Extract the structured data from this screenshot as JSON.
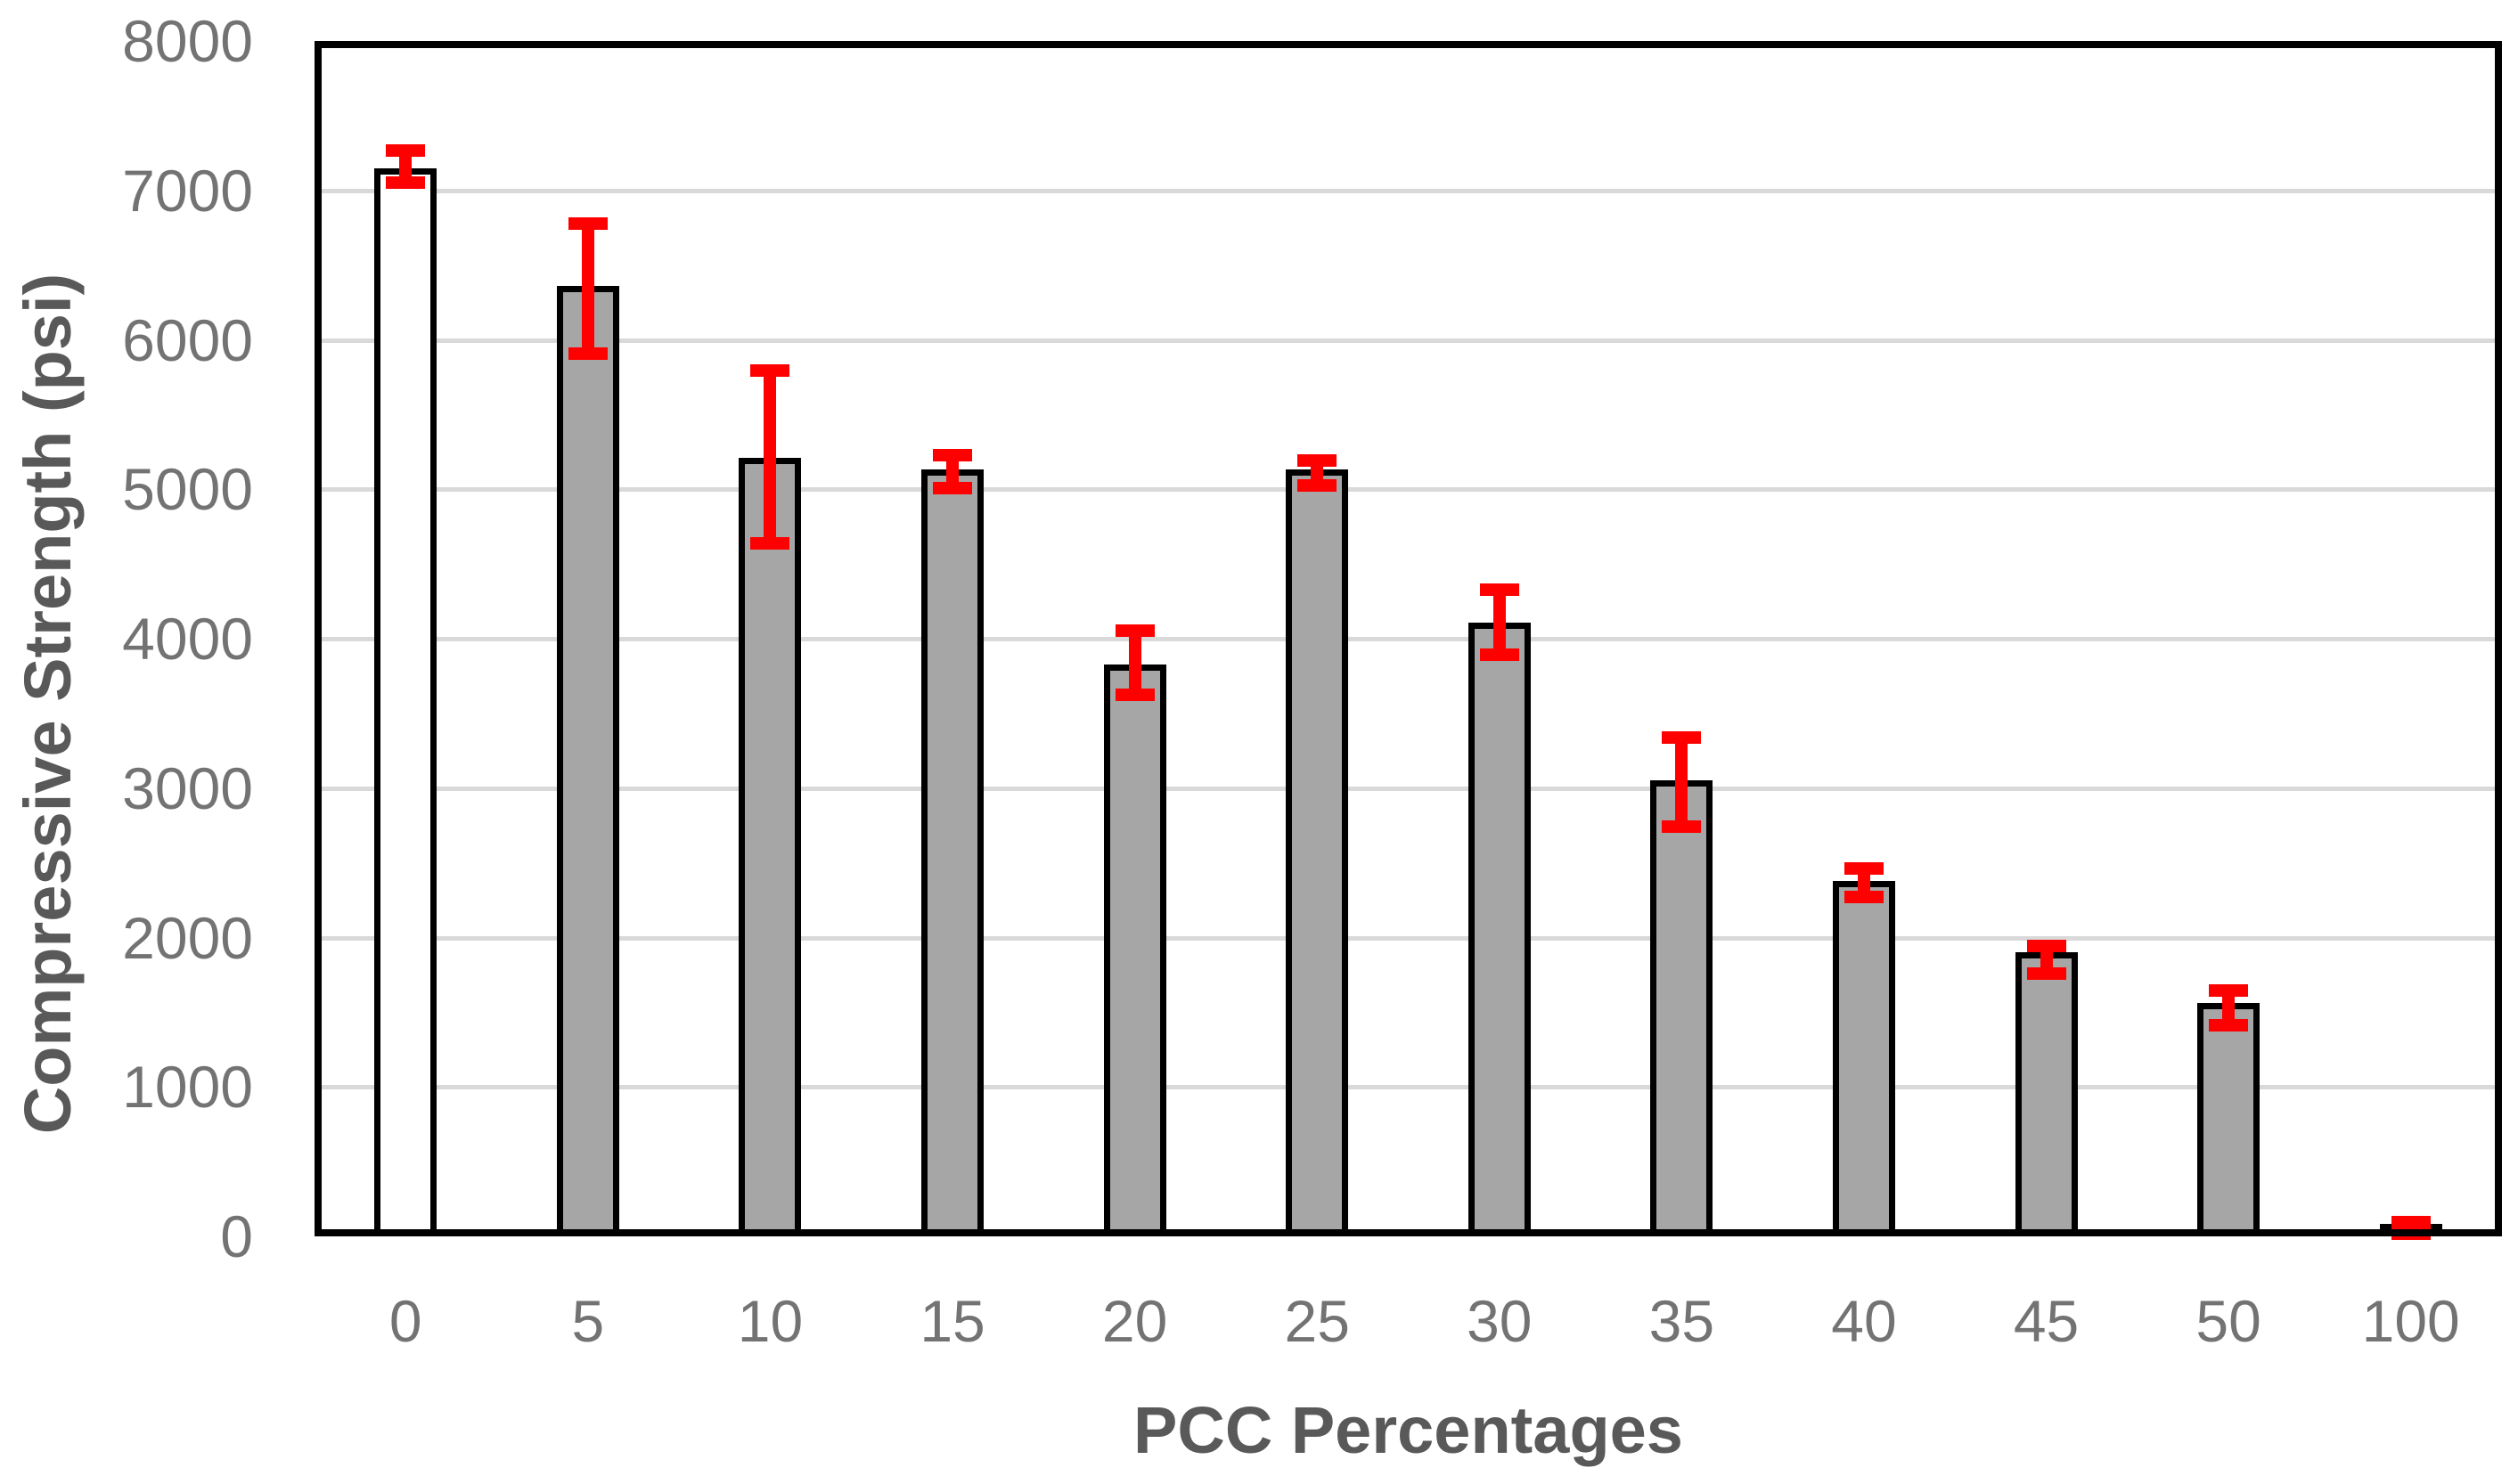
{
  "chart_data": {
    "type": "bar",
    "title": "",
    "xlabel": "PCC Percentages",
    "ylabel": "Compressive Strength (psi)",
    "categories": [
      "0",
      "5",
      "10",
      "15",
      "20",
      "25",
      "30",
      "35",
      "40",
      "45",
      "50",
      "100"
    ],
    "values": [
      7150,
      6360,
      5210,
      5130,
      3830,
      5130,
      4110,
      3050,
      2380,
      1900,
      1560,
      55
    ],
    "error_high": [
      7265,
      6780,
      5795,
      5230,
      4055,
      5190,
      4330,
      3340,
      2460,
      1945,
      1645,
      95
    ],
    "error_low": [
      7050,
      5910,
      4640,
      5010,
      3625,
      5025,
      3890,
      2740,
      2270,
      1760,
      1415,
      20
    ],
    "ylim": [
      0,
      8000
    ],
    "ytick_interval": 1000,
    "ytick_labels": [
      "0",
      "1000",
      "2000",
      "3000",
      "4000",
      "5000",
      "6000",
      "7000",
      "8000"
    ],
    "grid": "horizontal",
    "legend": "none",
    "bar_fills": [
      "#ffffff",
      "#a6a6a6",
      "#a6a6a6",
      "#a6a6a6",
      "#a6a6a6",
      "#a6a6a6",
      "#a6a6a6",
      "#a6a6a6",
      "#a6a6a6",
      "#a6a6a6",
      "#a6a6a6",
      "#a6a6a6"
    ]
  },
  "colors": {
    "bar_border": "#000000",
    "error_bar": "#ff0000",
    "gridline": "#d9d9d9",
    "plot_border": "#000000",
    "tick_text": "#737373",
    "title_text": "#595959",
    "background": "#ffffff"
  }
}
